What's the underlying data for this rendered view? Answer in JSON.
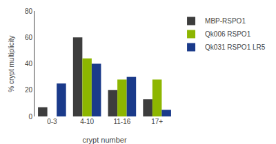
{
  "chart_data": {
    "type": "bar",
    "categories": [
      "0-3",
      "4-10",
      "11-16",
      "17+"
    ],
    "series": [
      {
        "name": "MBP-RSPO1",
        "color": "#3d3d3d",
        "values": [
          7,
          60,
          20,
          13
        ]
      },
      {
        "name": "Qk006 RSPO1",
        "color": "#8db600",
        "values": [
          0,
          44,
          28,
          28
        ]
      },
      {
        "name": "Qk031 RSPO1 LR5",
        "color": "#1a3a8a",
        "values": [
          25,
          40,
          30,
          5
        ]
      }
    ],
    "xlabel": "crypt number",
    "ylabel": "% crypt multiplicity",
    "ylim": [
      0,
      80
    ],
    "yticks": [
      0,
      20,
      40,
      60,
      80
    ],
    "grid": false,
    "legend": "upper right"
  }
}
